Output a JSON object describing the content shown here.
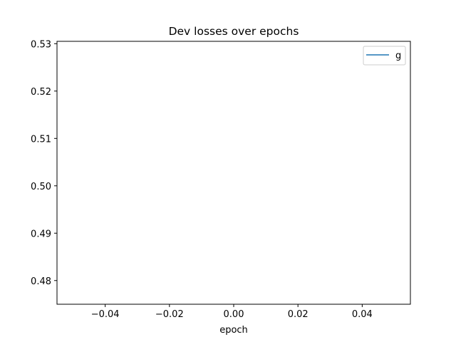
{
  "chart_data": {
    "type": "line",
    "title": "Dev losses over epochs",
    "xlabel": "epoch",
    "ylabel": "",
    "xlim": [
      -0.055,
      0.055
    ],
    "ylim": [
      0.475,
      0.5305
    ],
    "x_ticks": [
      -0.04,
      -0.02,
      0.0,
      0.02,
      0.04
    ],
    "x_tick_labels": [
      "−0.04",
      "−0.02",
      "0.00",
      "0.02",
      "0.04"
    ],
    "y_ticks": [
      0.48,
      0.49,
      0.5,
      0.51,
      0.52,
      0.53
    ],
    "y_tick_labels": [
      "0.48",
      "0.49",
      "0.50",
      "0.51",
      "0.52",
      "0.53"
    ],
    "grid": false,
    "legend_position": "upper-right",
    "series": [
      {
        "name": "g",
        "color": "#1f77b4",
        "x": [],
        "y": []
      }
    ]
  }
}
